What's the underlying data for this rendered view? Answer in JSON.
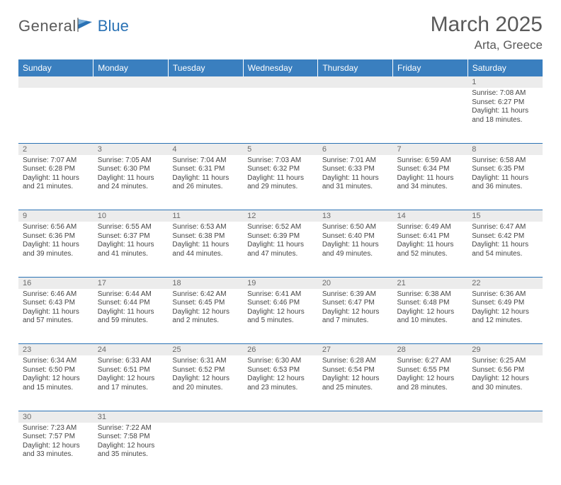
{
  "brand": {
    "text1": "General",
    "text2": "Blue",
    "logo_color": "#2a72b5"
  },
  "title": "March 2025",
  "location": "Arta, Greece",
  "colors": {
    "header_bg": "#3a7fbf",
    "header_fg": "#ffffff",
    "daynum_bg": "#ececec",
    "border": "#2a72b5",
    "text": "#454545"
  },
  "day_headers": [
    "Sunday",
    "Monday",
    "Tuesday",
    "Wednesday",
    "Thursday",
    "Friday",
    "Saturday"
  ],
  "weeks": [
    [
      null,
      null,
      null,
      null,
      null,
      null,
      {
        "n": "1",
        "sr": "Sunrise: 7:08 AM",
        "ss": "Sunset: 6:27 PM",
        "dl": "Daylight: 11 hours and 18 minutes."
      }
    ],
    [
      {
        "n": "2",
        "sr": "Sunrise: 7:07 AM",
        "ss": "Sunset: 6:28 PM",
        "dl": "Daylight: 11 hours and 21 minutes."
      },
      {
        "n": "3",
        "sr": "Sunrise: 7:05 AM",
        "ss": "Sunset: 6:30 PM",
        "dl": "Daylight: 11 hours and 24 minutes."
      },
      {
        "n": "4",
        "sr": "Sunrise: 7:04 AM",
        "ss": "Sunset: 6:31 PM",
        "dl": "Daylight: 11 hours and 26 minutes."
      },
      {
        "n": "5",
        "sr": "Sunrise: 7:03 AM",
        "ss": "Sunset: 6:32 PM",
        "dl": "Daylight: 11 hours and 29 minutes."
      },
      {
        "n": "6",
        "sr": "Sunrise: 7:01 AM",
        "ss": "Sunset: 6:33 PM",
        "dl": "Daylight: 11 hours and 31 minutes."
      },
      {
        "n": "7",
        "sr": "Sunrise: 6:59 AM",
        "ss": "Sunset: 6:34 PM",
        "dl": "Daylight: 11 hours and 34 minutes."
      },
      {
        "n": "8",
        "sr": "Sunrise: 6:58 AM",
        "ss": "Sunset: 6:35 PM",
        "dl": "Daylight: 11 hours and 36 minutes."
      }
    ],
    [
      {
        "n": "9",
        "sr": "Sunrise: 6:56 AM",
        "ss": "Sunset: 6:36 PM",
        "dl": "Daylight: 11 hours and 39 minutes."
      },
      {
        "n": "10",
        "sr": "Sunrise: 6:55 AM",
        "ss": "Sunset: 6:37 PM",
        "dl": "Daylight: 11 hours and 41 minutes."
      },
      {
        "n": "11",
        "sr": "Sunrise: 6:53 AM",
        "ss": "Sunset: 6:38 PM",
        "dl": "Daylight: 11 hours and 44 minutes."
      },
      {
        "n": "12",
        "sr": "Sunrise: 6:52 AM",
        "ss": "Sunset: 6:39 PM",
        "dl": "Daylight: 11 hours and 47 minutes."
      },
      {
        "n": "13",
        "sr": "Sunrise: 6:50 AM",
        "ss": "Sunset: 6:40 PM",
        "dl": "Daylight: 11 hours and 49 minutes."
      },
      {
        "n": "14",
        "sr": "Sunrise: 6:49 AM",
        "ss": "Sunset: 6:41 PM",
        "dl": "Daylight: 11 hours and 52 minutes."
      },
      {
        "n": "15",
        "sr": "Sunrise: 6:47 AM",
        "ss": "Sunset: 6:42 PM",
        "dl": "Daylight: 11 hours and 54 minutes."
      }
    ],
    [
      {
        "n": "16",
        "sr": "Sunrise: 6:46 AM",
        "ss": "Sunset: 6:43 PM",
        "dl": "Daylight: 11 hours and 57 minutes."
      },
      {
        "n": "17",
        "sr": "Sunrise: 6:44 AM",
        "ss": "Sunset: 6:44 PM",
        "dl": "Daylight: 11 hours and 59 minutes."
      },
      {
        "n": "18",
        "sr": "Sunrise: 6:42 AM",
        "ss": "Sunset: 6:45 PM",
        "dl": "Daylight: 12 hours and 2 minutes."
      },
      {
        "n": "19",
        "sr": "Sunrise: 6:41 AM",
        "ss": "Sunset: 6:46 PM",
        "dl": "Daylight: 12 hours and 5 minutes."
      },
      {
        "n": "20",
        "sr": "Sunrise: 6:39 AM",
        "ss": "Sunset: 6:47 PM",
        "dl": "Daylight: 12 hours and 7 minutes."
      },
      {
        "n": "21",
        "sr": "Sunrise: 6:38 AM",
        "ss": "Sunset: 6:48 PM",
        "dl": "Daylight: 12 hours and 10 minutes."
      },
      {
        "n": "22",
        "sr": "Sunrise: 6:36 AM",
        "ss": "Sunset: 6:49 PM",
        "dl": "Daylight: 12 hours and 12 minutes."
      }
    ],
    [
      {
        "n": "23",
        "sr": "Sunrise: 6:34 AM",
        "ss": "Sunset: 6:50 PM",
        "dl": "Daylight: 12 hours and 15 minutes."
      },
      {
        "n": "24",
        "sr": "Sunrise: 6:33 AM",
        "ss": "Sunset: 6:51 PM",
        "dl": "Daylight: 12 hours and 17 minutes."
      },
      {
        "n": "25",
        "sr": "Sunrise: 6:31 AM",
        "ss": "Sunset: 6:52 PM",
        "dl": "Daylight: 12 hours and 20 minutes."
      },
      {
        "n": "26",
        "sr": "Sunrise: 6:30 AM",
        "ss": "Sunset: 6:53 PM",
        "dl": "Daylight: 12 hours and 23 minutes."
      },
      {
        "n": "27",
        "sr": "Sunrise: 6:28 AM",
        "ss": "Sunset: 6:54 PM",
        "dl": "Daylight: 12 hours and 25 minutes."
      },
      {
        "n": "28",
        "sr": "Sunrise: 6:27 AM",
        "ss": "Sunset: 6:55 PM",
        "dl": "Daylight: 12 hours and 28 minutes."
      },
      {
        "n": "29",
        "sr": "Sunrise: 6:25 AM",
        "ss": "Sunset: 6:56 PM",
        "dl": "Daylight: 12 hours and 30 minutes."
      }
    ],
    [
      {
        "n": "30",
        "sr": "Sunrise: 7:23 AM",
        "ss": "Sunset: 7:57 PM",
        "dl": "Daylight: 12 hours and 33 minutes."
      },
      {
        "n": "31",
        "sr": "Sunrise: 7:22 AM",
        "ss": "Sunset: 7:58 PM",
        "dl": "Daylight: 12 hours and 35 minutes."
      },
      null,
      null,
      null,
      null,
      null
    ]
  ]
}
